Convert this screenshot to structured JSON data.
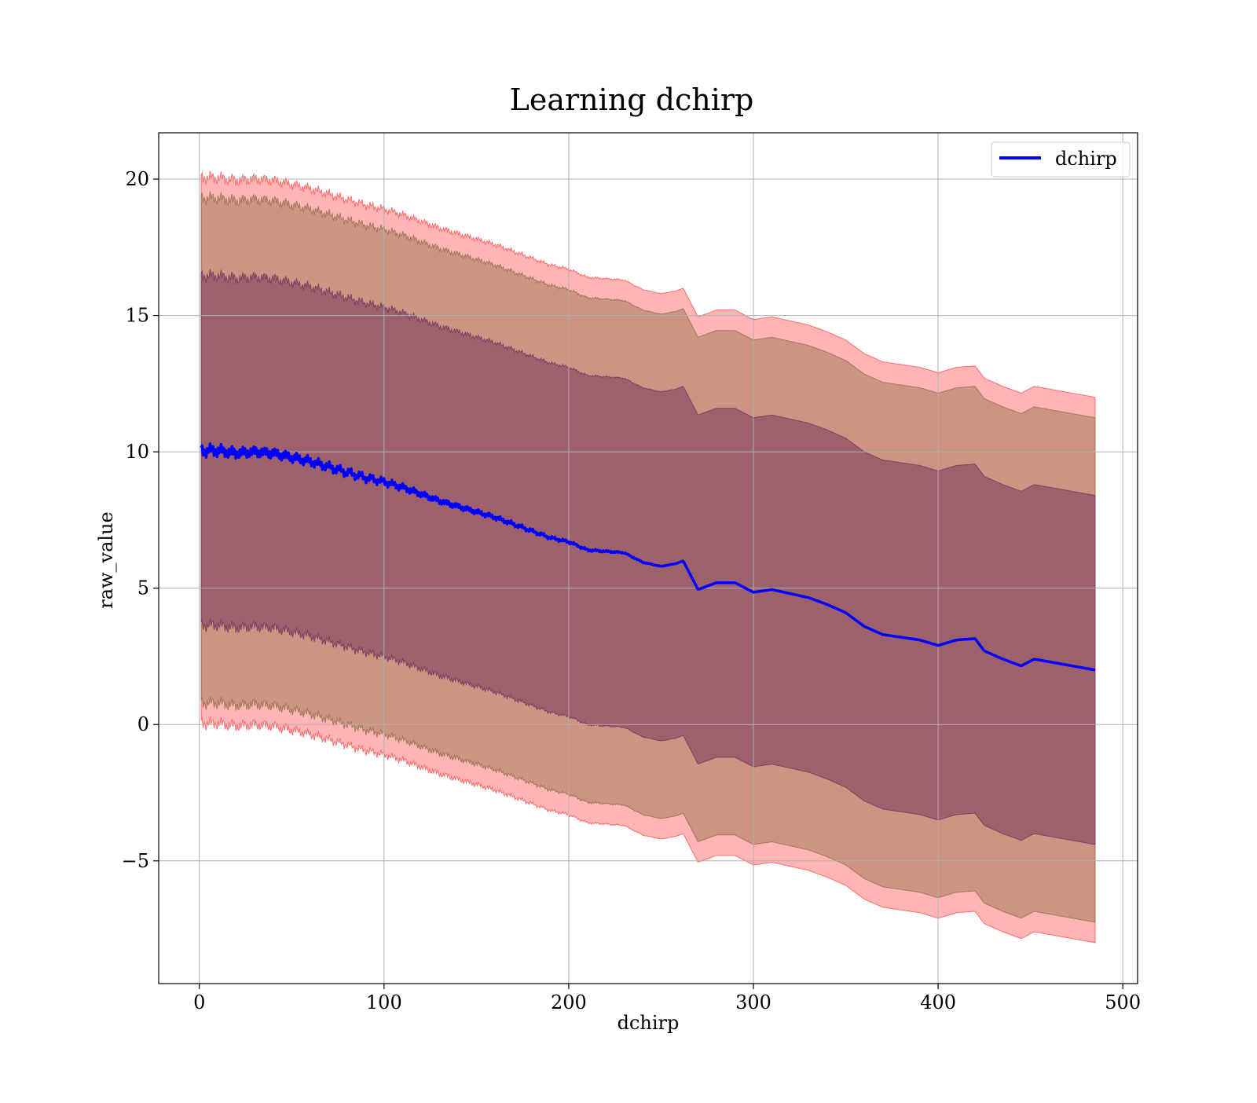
{
  "chart_data": {
    "type": "line",
    "title": "Learning dchirp",
    "xlabel": "dchirp",
    "ylabel": "raw_value",
    "xlim": [
      -22,
      508
    ],
    "ylim": [
      -9.5,
      21.7
    ],
    "xticks": [
      0,
      100,
      200,
      300,
      400,
      500
    ],
    "yticks": [
      -5,
      0,
      5,
      10,
      15,
      20
    ],
    "xtick_labels": [
      "0",
      "100",
      "200",
      "300",
      "400",
      "500"
    ],
    "ytick_labels": [
      "−5",
      "0",
      "5",
      "10",
      "15",
      "20"
    ],
    "grid": true,
    "legend": {
      "position": "top-right",
      "entries": [
        "dchirp"
      ]
    },
    "colors": {
      "line": "#0000ff",
      "band_outer": "#ff6b6b",
      "band_middle": "#a0795a",
      "band_inner": "#7f3f60",
      "grid": "#b0b0b0"
    },
    "series": [
      {
        "name": "dchirp",
        "x": [
          1,
          10,
          20,
          30,
          40,
          50,
          60,
          70,
          80,
          90,
          100,
          110,
          120,
          130,
          140,
          150,
          160,
          170,
          180,
          190,
          200,
          210,
          220,
          230,
          240,
          250,
          258,
          262,
          270,
          280,
          290,
          300,
          310,
          320,
          330,
          340,
          350,
          360,
          370,
          380,
          390,
          400,
          405,
          410,
          420,
          425,
          435,
          445,
          452,
          485
        ],
        "y": [
          10.05,
          10.05,
          9.95,
          10.0,
          9.95,
          9.8,
          9.65,
          9.45,
          9.25,
          9.05,
          8.9,
          8.7,
          8.45,
          8.2,
          8.0,
          7.8,
          7.6,
          7.35,
          7.1,
          6.85,
          6.7,
          6.4,
          6.35,
          6.3,
          5.95,
          5.8,
          5.9,
          6.0,
          4.95,
          5.2,
          5.2,
          4.85,
          4.95,
          4.8,
          4.65,
          4.4,
          4.1,
          3.6,
          3.3,
          3.2,
          3.1,
          2.9,
          3.0,
          3.1,
          3.15,
          2.7,
          2.4,
          2.15,
          2.4,
          2.0
        ]
      }
    ],
    "bands": [
      {
        "layer": "outer",
        "half_width_start": 10.0,
        "half_width_end": 10.0
      },
      {
        "layer": "middle",
        "half_width_start": 9.25,
        "half_width_end": 9.25
      },
      {
        "layer": "inner",
        "half_width_start": 6.4,
        "half_width_end": 6.4
      }
    ]
  }
}
